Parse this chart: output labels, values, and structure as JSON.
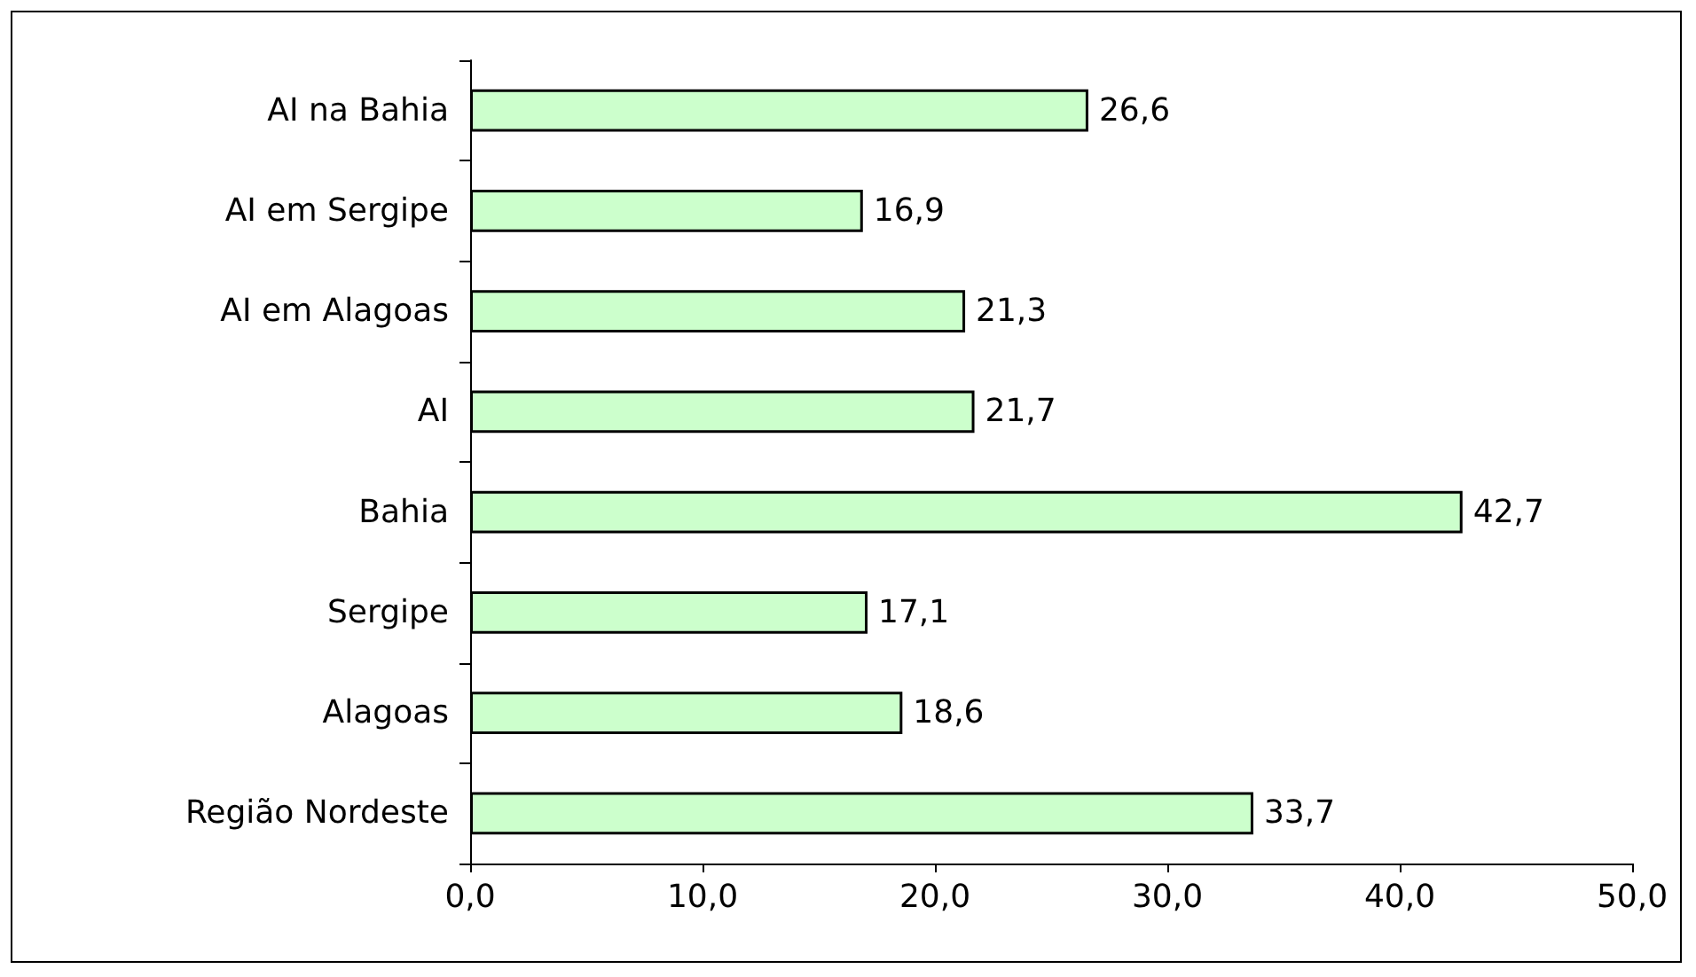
{
  "chart_data": {
    "type": "bar",
    "orientation": "horizontal",
    "categories": [
      "AI na Bahia",
      "AI em Sergipe",
      "AI em Alagoas",
      "AI",
      "Bahia",
      "Sergipe",
      "Alagoas",
      "Região Nordeste"
    ],
    "values": [
      26.6,
      16.9,
      21.3,
      21.7,
      42.7,
      17.1,
      18.6,
      33.7
    ],
    "value_labels": [
      "26,6",
      "16,9",
      "21,3",
      "21,7",
      "42,7",
      "17,1",
      "18,6",
      "33,7"
    ],
    "color": "#ccffcc",
    "xlim": [
      0,
      50
    ],
    "xticks": [
      {
        "value": 0,
        "label": "0,0"
      },
      {
        "value": 10,
        "label": "10,0"
      },
      {
        "value": 20,
        "label": "20,0"
      },
      {
        "value": 30,
        "label": "30,0"
      },
      {
        "value": 40,
        "label": "40,0"
      },
      {
        "value": 50,
        "label": "50,0"
      }
    ],
    "grid": false
  }
}
